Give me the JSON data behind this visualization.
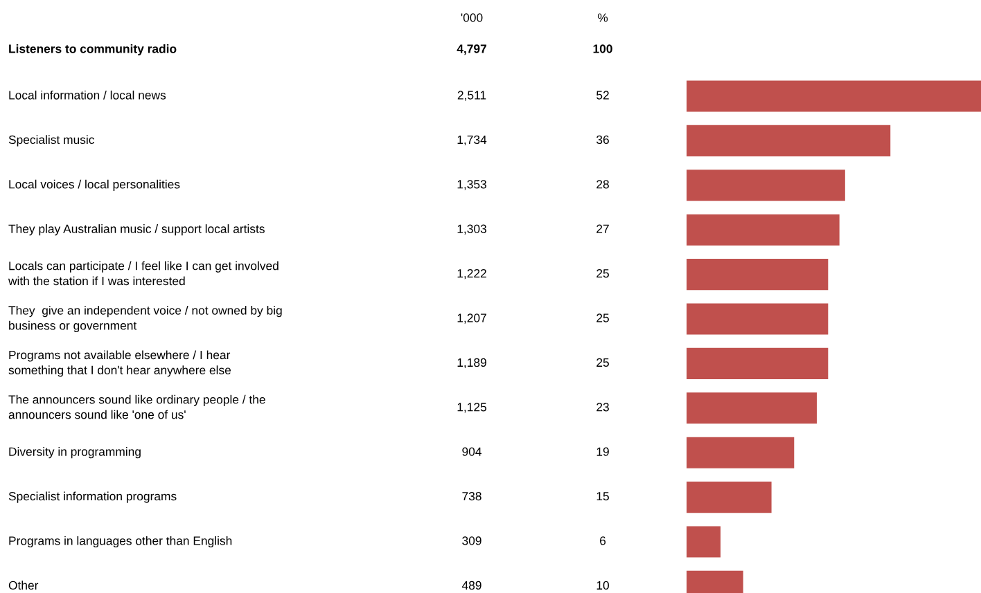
{
  "chart_data": {
    "type": "bar",
    "orientation": "horizontal",
    "categories": [
      "Local information / local news",
      "Specialist music",
      "Local voices / local personalities",
      "They play Australian music / support local artists",
      "Locals can participate / I feel like I can get involved\nwith the station if I was interested",
      "They  give an independent voice / not owned by big\nbusiness or government",
      "Programs not available elsewhere / I hear\nsomething that I don't hear anywhere else",
      "The announcers sound like ordinary people / the\nannouncers sound like 'one of us'",
      "Diversity in programming",
      "Specialist information programs",
      "Programs in languages other than English",
      "Other"
    ],
    "values": [
      52,
      36,
      28,
      27,
      25,
      25,
      25,
      23,
      19,
      15,
      6,
      10
    ],
    "data_labels": true,
    "color": "#c0504d",
    "annotations": [
      "'000",
      "%",
      "Listeners to community radio",
      "4,797",
      "100",
      "2,511",
      "1,734",
      "1,353",
      "1,303",
      "1,222",
      "1,207",
      "1,189",
      "1,125",
      "904",
      "738",
      "309",
      "489"
    ]
  }
}
